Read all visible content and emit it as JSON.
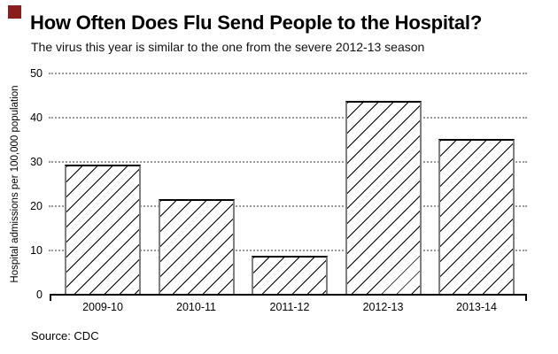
{
  "marker": {
    "color": "#8b1d1d"
  },
  "chart_data": {
    "type": "bar",
    "title": "How Often Does Flu Send People to the Hospital?",
    "subtitle": "The virus this year is similar to the one from the severe 2012-13 season",
    "ylabel": "Hospital admissions per 100,000 population",
    "xlabel": "",
    "source": "Source: CDC",
    "categories": [
      "2009-10",
      "2010-11",
      "2011-12",
      "2012-13",
      "2013-14"
    ],
    "values": [
      29.4,
      21.6,
      8.7,
      43.8,
      35.2
    ],
    "yticks": [
      0,
      10,
      20,
      30,
      40,
      50
    ],
    "ylim": [
      0,
      50
    ],
    "grid": "horizontal dotted gridlines at each y tick, legend none",
    "colors": {
      "grid": "#999999",
      "bar_fill": "#ffffff",
      "bar_hatch": "#000000",
      "bar_side_edge": "#808080",
      "bar_top_edge": "#000000",
      "axis": "#000000"
    },
    "bar_hatch_pattern": "/"
  }
}
